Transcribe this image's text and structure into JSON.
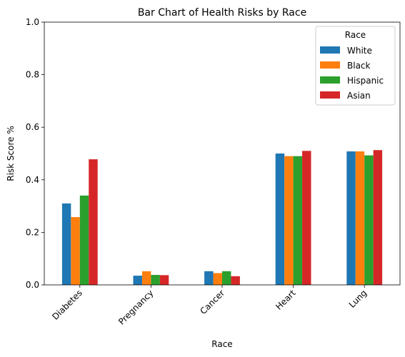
{
  "chart_data": {
    "type": "bar",
    "title": "Bar Chart of Health Risks by Race",
    "xlabel": "Race",
    "ylabel": "Risk Score %",
    "ylim": [
      0,
      1.0
    ],
    "yticks": [
      "0.0",
      "0.2",
      "0.4",
      "0.6",
      "0.8",
      "1.0"
    ],
    "categories": [
      "Diabetes",
      "Pregnancy",
      "Cancer",
      "Heart",
      "Lung"
    ],
    "legend": {
      "title": "Race",
      "placement": "top-right"
    },
    "series": [
      {
        "name": "White",
        "color": "#1f77b4",
        "values": [
          0.31,
          0.035,
          0.052,
          0.5,
          0.508
        ]
      },
      {
        "name": "Black",
        "color": "#ff7f0e",
        "values": [
          0.258,
          0.052,
          0.045,
          0.49,
          0.508
        ]
      },
      {
        "name": "Hispanic",
        "color": "#2ca02c",
        "values": [
          0.34,
          0.038,
          0.052,
          0.49,
          0.493
        ]
      },
      {
        "name": "Asian",
        "color": "#d62728",
        "values": [
          0.478,
          0.037,
          0.033,
          0.51,
          0.513
        ]
      }
    ]
  }
}
